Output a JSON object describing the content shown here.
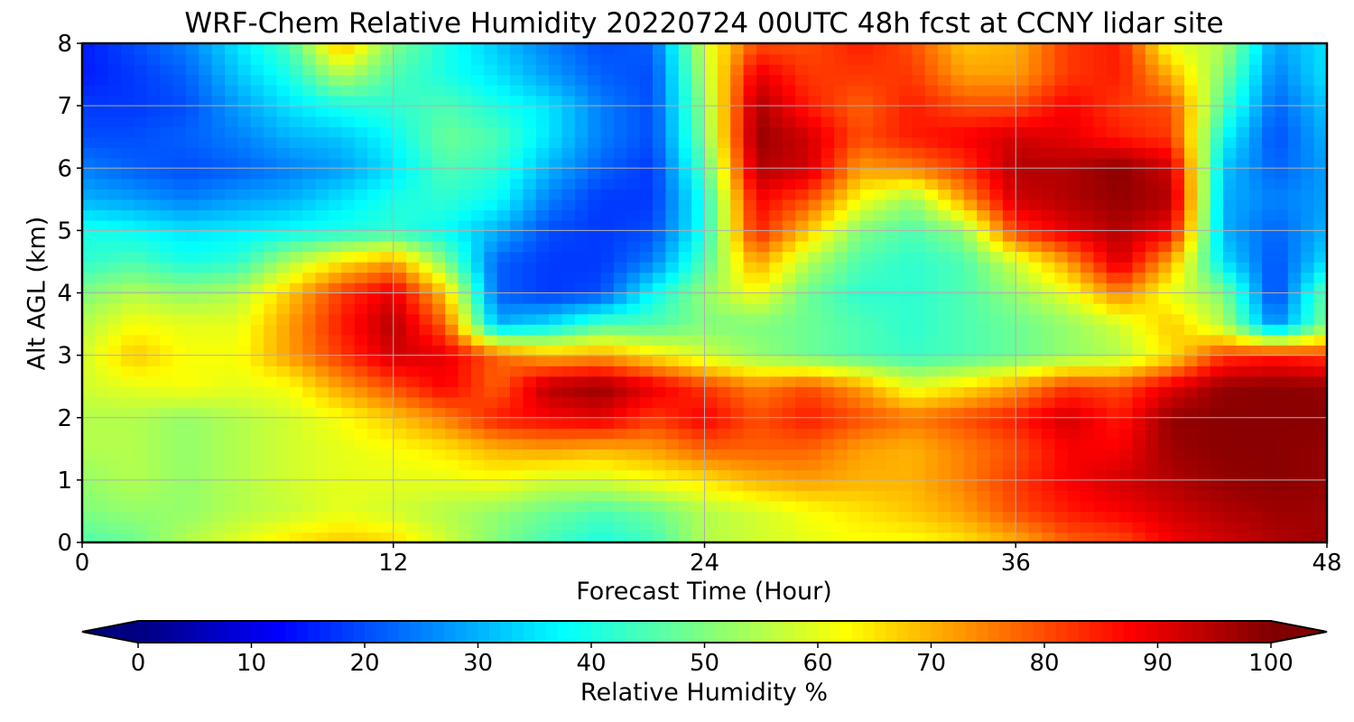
{
  "chart_data": {
    "type": "heatmap",
    "title": "WRF-Chem Relative Humidity 20220724 00UTC 48h fcst at CCNY lidar site",
    "xlabel": "Forecast Time (Hour)",
    "ylabel": "Alt AGL (km)",
    "xlim": [
      0,
      48
    ],
    "ylim": [
      0,
      8
    ],
    "xticks": [
      0,
      12,
      24,
      36,
      48
    ],
    "yticks": [
      0,
      1,
      2,
      3,
      4,
      5,
      6,
      7,
      8
    ],
    "grid": true,
    "colormap": "jet",
    "colorbar": {
      "label": "Relative Humidity %",
      "range": [
        0,
        100
      ],
      "ticks": [
        0,
        10,
        20,
        30,
        40,
        50,
        60,
        70,
        80,
        90,
        100
      ],
      "extend": "both",
      "orientation": "horizontal"
    },
    "z_units": "%",
    "x": [
      0,
      2,
      4,
      6,
      8,
      10,
      12,
      14,
      16,
      18,
      20,
      22,
      24,
      26,
      28,
      30,
      32,
      34,
      36,
      38,
      40,
      42,
      44,
      46,
      48
    ],
    "y": [
      0,
      0.5,
      1,
      1.5,
      2,
      2.5,
      3,
      3.5,
      4,
      4.5,
      5,
      5.5,
      6,
      6.5,
      7,
      7.5,
      8
    ],
    "z": [
      [
        45,
        48,
        55,
        60,
        65,
        68,
        66,
        58,
        50,
        44,
        40,
        44,
        55,
        58,
        60,
        62,
        62,
        65,
        70,
        78,
        80,
        88,
        92,
        95,
        97
      ],
      [
        50,
        52,
        52,
        55,
        57,
        60,
        58,
        55,
        52,
        48,
        45,
        48,
        55,
        58,
        62,
        65,
        68,
        72,
        80,
        85,
        88,
        92,
        95,
        97,
        97
      ],
      [
        52,
        55,
        52,
        55,
        58,
        60,
        60,
        60,
        62,
        58,
        58,
        62,
        65,
        70,
        72,
        70,
        70,
        75,
        82,
        88,
        92,
        95,
        98,
        99,
        98
      ],
      [
        55,
        55,
        52,
        55,
        58,
        60,
        62,
        65,
        70,
        72,
        70,
        72,
        78,
        78,
        78,
        72,
        70,
        75,
        80,
        88,
        88,
        97,
        99,
        99,
        98
      ],
      [
        55,
        55,
        52,
        55,
        58,
        62,
        68,
        75,
        85,
        88,
        90,
        82,
        88,
        80,
        85,
        80,
        76,
        80,
        85,
        92,
        85,
        98,
        99,
        99,
        99
      ],
      [
        58,
        60,
        62,
        60,
        62,
        72,
        80,
        88,
        78,
        95,
        98,
        90,
        82,
        75,
        80,
        72,
        60,
        65,
        72,
        82,
        80,
        90,
        98,
        99,
        98
      ],
      [
        58,
        68,
        62,
        62,
        72,
        82,
        92,
        90,
        78,
        70,
        72,
        65,
        58,
        52,
        48,
        45,
        43,
        45,
        48,
        52,
        55,
        65,
        82,
        85,
        82
      ],
      [
        55,
        62,
        60,
        60,
        72,
        85,
        95,
        78,
        30,
        35,
        45,
        45,
        50,
        50,
        48,
        45,
        42,
        45,
        48,
        52,
        58,
        68,
        55,
        25,
        50
      ],
      [
        50,
        55,
        52,
        55,
        68,
        82,
        90,
        68,
        22,
        18,
        20,
        38,
        52,
        62,
        48,
        42,
        42,
        45,
        52,
        60,
        75,
        60,
        50,
        18,
        48
      ],
      [
        42,
        45,
        40,
        42,
        55,
        65,
        72,
        50,
        22,
        18,
        18,
        25,
        45,
        72,
        55,
        45,
        42,
        45,
        58,
        72,
        92,
        70,
        35,
        20,
        35
      ],
      [
        40,
        38,
        35,
        36,
        38,
        40,
        42,
        38,
        30,
        20,
        18,
        20,
        40,
        85,
        68,
        50,
        45,
        52,
        82,
        90,
        95,
        88,
        30,
        22,
        30
      ],
      [
        30,
        28,
        25,
        28,
        30,
        35,
        40,
        42,
        38,
        25,
        18,
        18,
        40,
        88,
        80,
        62,
        52,
        72,
        92,
        95,
        98,
        95,
        30,
        25,
        28
      ],
      [
        25,
        22,
        20,
        22,
        25,
        28,
        35,
        45,
        42,
        30,
        22,
        18,
        45,
        95,
        92,
        72,
        75,
        82,
        95,
        95,
        99,
        92,
        32,
        22,
        28
      ],
      [
        20,
        20,
        22,
        25,
        30,
        32,
        38,
        48,
        45,
        35,
        25,
        20,
        50,
        98,
        92,
        80,
        85,
        88,
        92,
        90,
        85,
        82,
        38,
        20,
        30
      ],
      [
        18,
        18,
        20,
        28,
        35,
        40,
        42,
        45,
        40,
        35,
        25,
        20,
        52,
        96,
        85,
        78,
        85,
        80,
        80,
        88,
        82,
        80,
        45,
        22,
        32
      ],
      [
        15,
        18,
        22,
        32,
        40,
        55,
        45,
        40,
        35,
        28,
        22,
        20,
        55,
        90,
        82,
        82,
        82,
        72,
        72,
        82,
        85,
        70,
        50,
        25,
        35
      ],
      [
        15,
        20,
        25,
        35,
        45,
        70,
        50,
        40,
        32,
        25,
        20,
        22,
        58,
        80,
        80,
        85,
        80,
        68,
        70,
        82,
        85,
        60,
        55,
        28,
        35
      ]
    ]
  }
}
